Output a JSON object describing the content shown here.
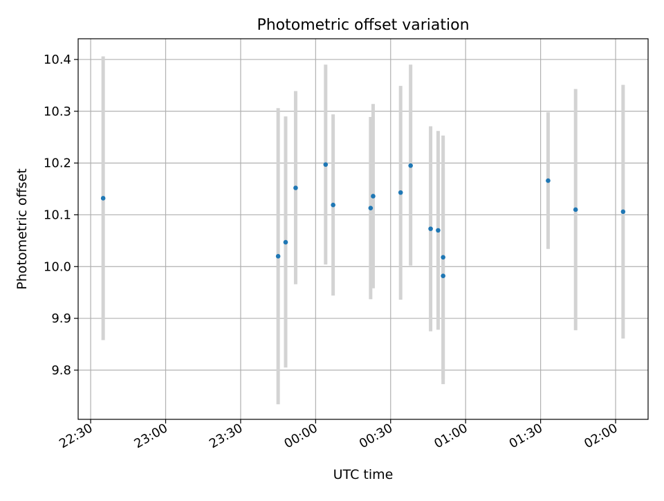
{
  "chart_data": {
    "type": "scatter",
    "title": "Photometric offset variation",
    "xlabel": "UTC time",
    "ylabel": "Photometric offset",
    "grid": true,
    "x_range": [
      "22:25",
      "02:13"
    ],
    "ylim": [
      9.705,
      10.44
    ],
    "x_ticks": [
      "22:30",
      "23:00",
      "23:30",
      "00:00",
      "00:30",
      "01:00",
      "01:30",
      "02:00"
    ],
    "y_ticks": [
      9.8,
      9.9,
      10.0,
      10.1,
      10.2,
      10.3,
      10.4
    ],
    "y_tick_labels": [
      "9.8",
      "9.9",
      "10.0",
      "10.1",
      "10.2",
      "10.3",
      "10.4"
    ],
    "marker_color": "#1f77b4",
    "errorbar_color": "#d3d3d3",
    "series": [
      {
        "points": [
          {
            "t": "22:35",
            "y": 10.132,
            "lo": 9.858,
            "hi": 10.406
          },
          {
            "t": "23:45",
            "y": 10.02,
            "lo": 9.734,
            "hi": 10.306
          },
          {
            "t": "23:48",
            "y": 10.047,
            "lo": 9.805,
            "hi": 10.29
          },
          {
            "t": "23:52",
            "y": 10.152,
            "lo": 9.966,
            "hi": 10.339
          },
          {
            "t": "00:04",
            "y": 10.197,
            "lo": 10.004,
            "hi": 10.39
          },
          {
            "t": "00:07",
            "y": 10.119,
            "lo": 9.944,
            "hi": 10.294
          },
          {
            "t": "00:22",
            "y": 10.113,
            "lo": 9.937,
            "hi": 10.289
          },
          {
            "t": "00:23",
            "y": 10.136,
            "lo": 9.958,
            "hi": 10.314
          },
          {
            "t": "00:34",
            "y": 10.143,
            "lo": 9.936,
            "hi": 10.349
          },
          {
            "t": "00:38",
            "y": 10.195,
            "lo": 10.002,
            "hi": 10.39
          },
          {
            "t": "00:46",
            "y": 10.073,
            "lo": 9.875,
            "hi": 10.271
          },
          {
            "t": "00:49",
            "y": 10.07,
            "lo": 9.878,
            "hi": 10.262
          },
          {
            "t": "00:51",
            "y": 10.018,
            "lo": 9.783,
            "hi": 10.253
          },
          {
            "t": "00:51",
            "y": 9.982,
            "lo": 9.773,
            "hi": 10.191
          },
          {
            "t": "01:33",
            "y": 10.166,
            "lo": 10.034,
            "hi": 10.298
          },
          {
            "t": "01:44",
            "y": 10.11,
            "lo": 9.877,
            "hi": 10.343
          },
          {
            "t": "02:03",
            "y": 10.106,
            "lo": 9.861,
            "hi": 10.351
          }
        ]
      }
    ]
  }
}
